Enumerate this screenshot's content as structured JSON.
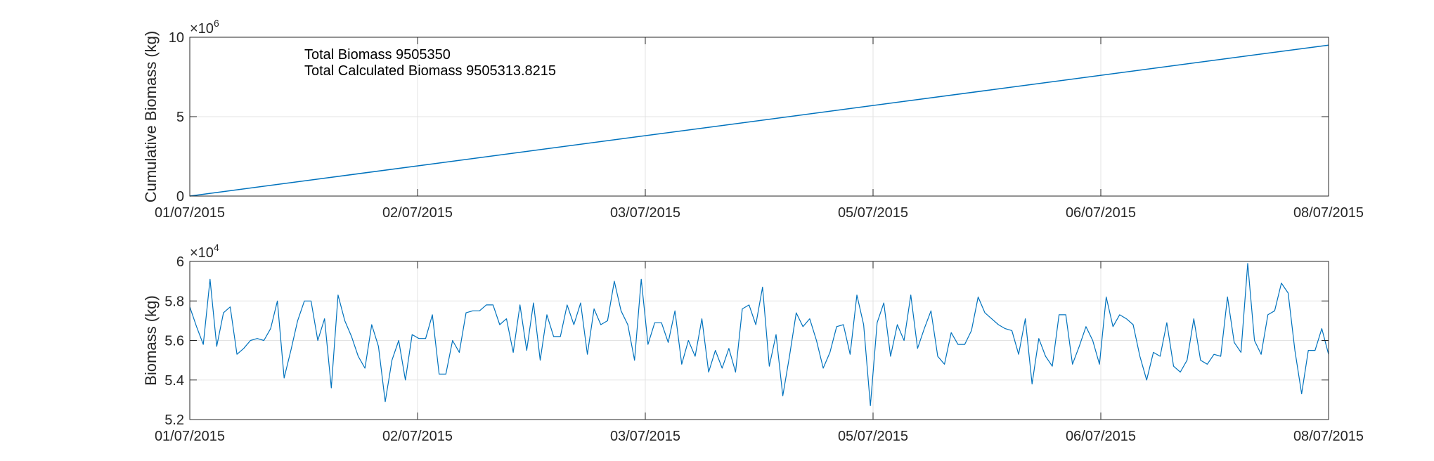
{
  "colors": {
    "series": "#0072bd",
    "grid": "#e3e3e3",
    "axis": "#262626"
  },
  "chart_data": [
    {
      "type": "line",
      "title": "",
      "xlabel": "",
      "ylabel": "Cumulative Biomass (kg)",
      "grid": true,
      "ylim": [
        0,
        10000000
      ],
      "y_exponent_label": "×10",
      "y_exponent_power": "6",
      "y_ticks": [
        0,
        5,
        10
      ],
      "y_tick_labels": [
        "0",
        "5",
        "10"
      ],
      "x_ticks": [
        "01/07/2015",
        "02/07/2015",
        "03/07/2015",
        "05/07/2015",
        "06/07/2015",
        "08/07/2015"
      ],
      "annotations": [
        "Total Biomass 9505350",
        "Total Calculated Biomass 9505313.8215"
      ],
      "series": [
        {
          "x": [
            "01/07/2015",
            "08/07/2015"
          ],
          "values": [
            0,
            9505350
          ]
        }
      ]
    },
    {
      "type": "line",
      "title": "",
      "xlabel": "",
      "ylabel": "Biomass (kg)",
      "grid": true,
      "ylim": [
        52000,
        60000
      ],
      "y_exponent_label": "×10",
      "y_exponent_power": "4",
      "y_ticks": [
        5.2,
        5.4,
        5.6,
        5.8,
        6
      ],
      "y_tick_labels": [
        "5.2",
        "5.4",
        "5.6",
        "5.8",
        "6"
      ],
      "x_ticks": [
        "01/07/2015",
        "02/07/2015",
        "03/07/2015",
        "05/07/2015",
        "06/07/2015",
        "08/07/2015"
      ],
      "series": [
        {
          "x_range": [
            "01/07/2015",
            "08/07/2015"
          ],
          "values": [
            57700,
            56700,
            55800,
            59100,
            55700,
            57400,
            57700,
            55300,
            55600,
            56000,
            56100,
            56000,
            56600,
            58000,
            54100,
            55500,
            57000,
            58000,
            58000,
            56000,
            57100,
            53600,
            58300,
            57000,
            56200,
            55200,
            54600,
            56800,
            55700,
            52900,
            55000,
            56000,
            54000,
            56300,
            56100,
            56100,
            57300,
            54300,
            54300,
            56000,
            55400,
            57400,
            57500,
            57500,
            57800,
            57800,
            56800,
            57100,
            55400,
            57800,
            55500,
            57900,
            55000,
            57300,
            56200,
            56200,
            57800,
            56800,
            57900,
            55300,
            57600,
            56800,
            57000,
            59000,
            57500,
            56800,
            55000,
            59100,
            55800,
            56900,
            56900,
            55900,
            57500,
            54800,
            56000,
            55200,
            57100,
            54400,
            55500,
            54600,
            55600,
            54400,
            57600,
            57800,
            56800,
            58700,
            54700,
            56300,
            53200,
            55200,
            57400,
            56700,
            57100,
            56000,
            54600,
            55400,
            56700,
            56800,
            55300,
            58300,
            56800,
            52700,
            56900,
            57900,
            55200,
            56800,
            56000,
            58300,
            55600,
            56600,
            57500,
            55200,
            54800,
            56400,
            55800,
            55800,
            56500,
            58200,
            57400,
            57100,
            56800,
            56600,
            56500,
            55300,
            57100,
            53800,
            56100,
            55200,
            54700,
            57300,
            57300,
            54800,
            55700,
            56700,
            56000,
            54800,
            58200,
            56700,
            57300,
            57100,
            56800,
            55200,
            54000,
            55400,
            55200,
            56900,
            54700,
            54400,
            55000,
            57100,
            55000,
            54800,
            55300,
            55200,
            58200,
            55900,
            55400,
            59900,
            56000,
            55300,
            57300,
            57500,
            58900,
            58400,
            55500,
            53300,
            55500,
            55500,
            56600,
            55300
          ]
        }
      ]
    }
  ]
}
